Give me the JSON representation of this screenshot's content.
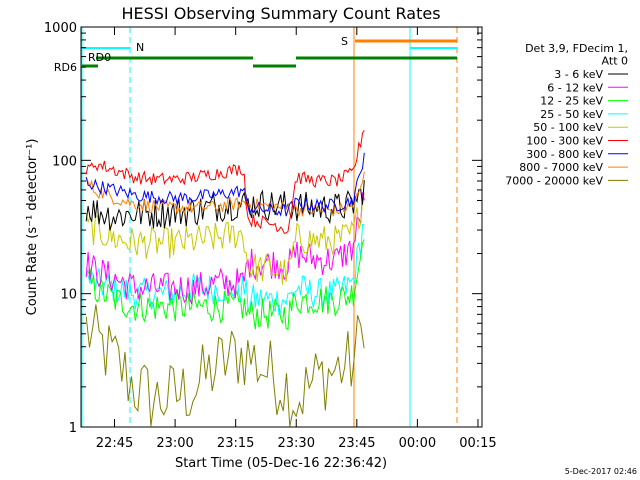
{
  "chart_data": {
    "type": "line",
    "title": "HESSI Observing Summary Count Rates",
    "xlabel": "Start Time (05-Dec-16 22:36:42)",
    "ylabel": "Count Rate (s⁻¹ detector⁻¹)",
    "y_scale": "log",
    "ylim": [
      1,
      1000
    ],
    "xlim": [
      "22:36:42",
      "00:16:00"
    ],
    "x_ticks": [
      "22:45",
      "23:00",
      "23:15",
      "23:30",
      "23:45",
      "00:00",
      "00:15"
    ],
    "y_ticks": [
      "1",
      "10",
      "100",
      "1000"
    ],
    "timestamp": "5-Dec-2017 02:46",
    "legend": {
      "header": [
        "Det 3,9, FDecim 1,",
        "Att 0"
      ],
      "placement": "right"
    },
    "flag_labels": {
      "rd6": "RD6",
      "rd0": "RD0",
      "n": "N",
      "s": "S"
    },
    "series": [
      {
        "name": "3 - 6 keV",
        "color": "#000000",
        "points": [
          [
            "22:38",
            45
          ],
          [
            "22:40",
            42
          ],
          [
            "22:45",
            38
          ],
          [
            "22:50",
            40
          ],
          [
            "22:55",
            40
          ],
          [
            "23:00",
            41
          ],
          [
            "23:05",
            42
          ],
          [
            "23:10",
            45
          ],
          [
            "23:15",
            47
          ],
          [
            "23:20",
            47
          ],
          [
            "23:25",
            46
          ],
          [
            "23:30",
            45
          ],
          [
            "23:35",
            44
          ],
          [
            "23:40",
            44
          ],
          [
            "23:44",
            46
          ],
          [
            "23:46",
            55
          ],
          [
            "23:47",
            70
          ]
        ]
      },
      {
        "name": "6 - 12 keV",
        "color": "#ff00ff",
        "points": [
          [
            "22:38",
            17
          ],
          [
            "22:40",
            15
          ],
          [
            "22:45",
            13
          ],
          [
            "22:50",
            11
          ],
          [
            "22:55",
            11
          ],
          [
            "23:00",
            11
          ],
          [
            "23:05",
            11
          ],
          [
            "23:10",
            12
          ],
          [
            "23:15",
            12
          ],
          [
            "23:17",
            12
          ],
          [
            "23:18",
            17
          ],
          [
            "23:25",
            17
          ],
          [
            "23:28",
            16
          ],
          [
            "23:30",
            20
          ],
          [
            "23:35",
            18
          ],
          [
            "23:40",
            18
          ],
          [
            "23:44",
            22
          ],
          [
            "23:46",
            40
          ],
          [
            "23:47",
            60
          ]
        ]
      },
      {
        "name": "12 - 25 keV",
        "color": "#00ff00",
        "points": [
          [
            "22:38",
            13
          ],
          [
            "22:40",
            11
          ],
          [
            "22:45",
            9
          ],
          [
            "22:50",
            8
          ],
          [
            "22:55",
            8
          ],
          [
            "23:00",
            8
          ],
          [
            "23:05",
            8
          ],
          [
            "23:10",
            8
          ],
          [
            "23:15",
            8
          ],
          [
            "23:17",
            8
          ],
          [
            "23:18",
            7
          ],
          [
            "23:25",
            7
          ],
          [
            "23:28",
            7
          ],
          [
            "23:30",
            9
          ],
          [
            "23:35",
            9
          ],
          [
            "23:40",
            9
          ],
          [
            "23:44",
            10
          ],
          [
            "23:46",
            20
          ],
          [
            "23:47",
            35
          ]
        ]
      },
      {
        "name": "25 - 50 keV",
        "color": "#00ffff",
        "points": [
          [
            "22:38",
            13
          ],
          [
            "22:40",
            12
          ],
          [
            "22:45",
            11
          ],
          [
            "22:50",
            10
          ],
          [
            "22:55",
            10
          ],
          [
            "23:00",
            10
          ],
          [
            "23:05",
            11
          ],
          [
            "23:10",
            11
          ],
          [
            "23:15",
            11
          ],
          [
            "23:17",
            11
          ],
          [
            "23:18",
            9
          ],
          [
            "23:25",
            9
          ],
          [
            "23:28",
            9
          ],
          [
            "23:30",
            11
          ],
          [
            "23:35",
            10
          ],
          [
            "23:40",
            10
          ],
          [
            "23:44",
            12
          ],
          [
            "23:46",
            25
          ],
          [
            "23:47",
            40
          ]
        ]
      },
      {
        "name": "50 - 100 keV",
        "color": "#c8c800",
        "points": [
          [
            "22:38",
            32
          ],
          [
            "22:40",
            30
          ],
          [
            "22:45",
            26
          ],
          [
            "22:50",
            24
          ],
          [
            "22:55",
            24
          ],
          [
            "23:00",
            24
          ],
          [
            "23:05",
            25
          ],
          [
            "23:10",
            26
          ],
          [
            "23:15",
            28
          ],
          [
            "23:17",
            28
          ],
          [
            "23:18",
            16
          ],
          [
            "23:25",
            15
          ],
          [
            "23:28",
            14
          ],
          [
            "23:30",
            26
          ],
          [
            "23:35",
            25
          ],
          [
            "23:40",
            25
          ],
          [
            "23:44",
            28
          ],
          [
            "23:46",
            45
          ],
          [
            "23:47",
            60
          ]
        ]
      },
      {
        "name": "100 - 300 keV",
        "color": "#ff0000",
        "points": [
          [
            "22:38",
            80
          ],
          [
            "22:40",
            95
          ],
          [
            "22:45",
            85
          ],
          [
            "22:50",
            75
          ],
          [
            "22:55",
            72
          ],
          [
            "23:00",
            72
          ],
          [
            "23:05",
            75
          ],
          [
            "23:10",
            80
          ],
          [
            "23:15",
            85
          ],
          [
            "23:17",
            87
          ],
          [
            "23:18",
            36
          ],
          [
            "23:25",
            33
          ],
          [
            "23:28",
            30
          ],
          [
            "23:30",
            75
          ],
          [
            "23:35",
            70
          ],
          [
            "23:40",
            70
          ],
          [
            "23:44",
            80
          ],
          [
            "23:46",
            140
          ],
          [
            "23:47",
            190
          ]
        ]
      },
      {
        "name": "300 - 800 keV",
        "color": "#0000ff",
        "points": [
          [
            "22:38",
            70
          ],
          [
            "22:40",
            65
          ],
          [
            "22:45",
            60
          ],
          [
            "22:50",
            55
          ],
          [
            "22:55",
            53
          ],
          [
            "23:00",
            52
          ],
          [
            "23:05",
            53
          ],
          [
            "23:10",
            55
          ],
          [
            "23:15",
            58
          ],
          [
            "23:17",
            60
          ],
          [
            "23:18",
            44
          ],
          [
            "23:25",
            42
          ],
          [
            "23:28",
            42
          ],
          [
            "23:30",
            48
          ],
          [
            "23:35",
            46
          ],
          [
            "23:40",
            46
          ],
          [
            "23:44",
            50
          ],
          [
            "23:46",
            80
          ],
          [
            "23:47",
            130
          ]
        ]
      },
      {
        "name": "800 - 7000 keV",
        "color": "#ff8000",
        "points": [
          [
            "22:38",
            70
          ],
          [
            "22:40",
            60
          ],
          [
            "22:45",
            52
          ],
          [
            "22:50",
            47
          ],
          [
            "22:55",
            45
          ],
          [
            "23:00",
            44
          ],
          [
            "23:05",
            44
          ],
          [
            "23:10",
            45
          ],
          [
            "23:15",
            47
          ],
          [
            "23:17",
            48
          ],
          [
            "23:18",
            47
          ],
          [
            "23:25",
            45
          ],
          [
            "23:28",
            44
          ],
          [
            "23:30",
            43
          ],
          [
            "23:35",
            42
          ],
          [
            "23:40",
            42
          ],
          [
            "23:44",
            45
          ],
          [
            "23:46",
            60
          ],
          [
            "23:47",
            85
          ]
        ]
      },
      {
        "name": "7000 - 20000 keV",
        "color": "#808000",
        "points": [
          [
            "22:38",
            5.5
          ],
          [
            "22:40",
            4.5
          ],
          [
            "22:45",
            3.2
          ],
          [
            "22:50",
            2
          ],
          [
            "22:55",
            1.6
          ],
          [
            "23:00",
            1.7
          ],
          [
            "23:05",
            2
          ],
          [
            "23:10",
            2.8
          ],
          [
            "23:15",
            3.5
          ],
          [
            "23:17",
            3.5
          ],
          [
            "23:18",
            3.5
          ],
          [
            "23:25",
            2.3
          ],
          [
            "23:28",
            2
          ],
          [
            "23:30",
            1.6
          ],
          [
            "23:35",
            2.3
          ],
          [
            "23:40",
            2.7
          ],
          [
            "23:44",
            3
          ],
          [
            "23:46",
            5
          ],
          [
            "23:47",
            8
          ]
        ]
      }
    ]
  }
}
